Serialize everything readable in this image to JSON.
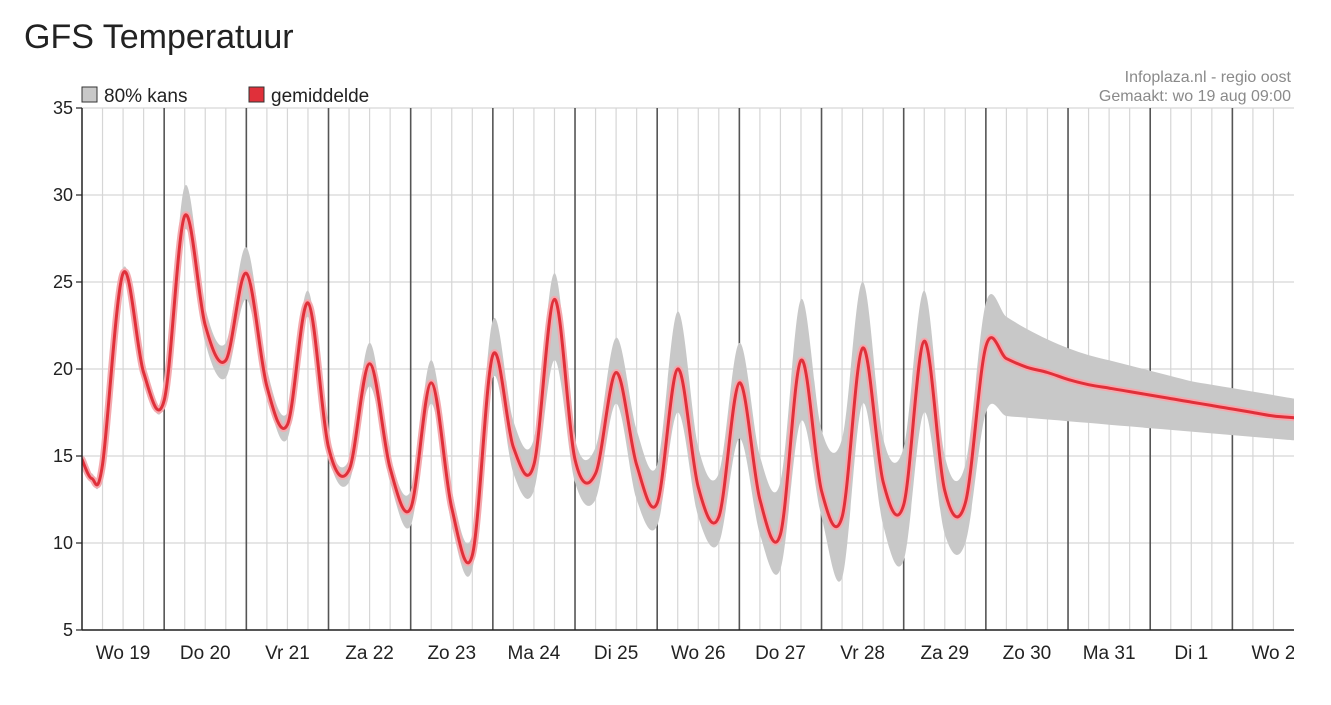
{
  "page": {
    "title": "GFS Temperatuur"
  },
  "chart_data": {
    "type": "line",
    "title": "GFS Temperatuur",
    "xlabel": "",
    "ylabel": "",
    "ylim": [
      5,
      35
    ],
    "y_ticks": [
      5,
      10,
      15,
      20,
      25,
      30,
      35
    ],
    "x_unit": "day",
    "xlim": [
      0,
      14.75
    ],
    "categories": [
      "Wo 19",
      "Do 20",
      "Vr 21",
      "Za 22",
      "Zo 23",
      "Ma 24",
      "Di 25",
      "Wo 26",
      "Do 27",
      "Vr 28",
      "Za 29",
      "Zo 30",
      "Ma 31",
      "Di 1",
      "Wo 2"
    ],
    "grid": true,
    "legend": {
      "position": "top-left",
      "entries": [
        "80% kans",
        "gemiddelde"
      ]
    },
    "source": [
      "Infoplaza.nl - regio oost",
      "Gemaakt: wo 19 aug 09:00"
    ],
    "colors": {
      "mean": "#e0303a",
      "band": "#c8c8c8",
      "mean_halo": "#f4a9ae"
    },
    "series": [
      {
        "name": "gemiddelde",
        "x": [
          0.0,
          0.12,
          0.25,
          0.5,
          0.75,
          1.0,
          1.25,
          1.5,
          1.75,
          2.0,
          2.25,
          2.5,
          2.75,
          3.0,
          3.25,
          3.5,
          3.75,
          4.0,
          4.25,
          4.5,
          4.75,
          5.0,
          5.25,
          5.5,
          5.75,
          6.0,
          6.25,
          6.5,
          6.75,
          7.0,
          7.25,
          7.5,
          7.75,
          8.0,
          8.25,
          8.5,
          8.75,
          9.0,
          9.25,
          9.5,
          9.75,
          10.0,
          10.25,
          10.5,
          10.75,
          11.0,
          11.25,
          11.5,
          11.75,
          12.0,
          12.25,
          12.5,
          12.75,
          13.0,
          13.25,
          13.5,
          13.75,
          14.0,
          14.25,
          14.5,
          14.75
        ],
        "values": [
          14.8,
          13.7,
          14.5,
          25.5,
          19.8,
          18.2,
          28.8,
          22.5,
          20.5,
          25.5,
          19.0,
          16.8,
          23.8,
          15.5,
          14.2,
          20.3,
          14.3,
          12.0,
          19.2,
          12.0,
          9.3,
          20.8,
          15.5,
          14.5,
          24.0,
          14.8,
          14.0,
          19.8,
          14.5,
          12.3,
          20.0,
          13.2,
          11.5,
          19.2,
          12.5,
          10.5,
          20.5,
          13.0,
          11.5,
          21.2,
          13.5,
          12.2,
          21.6,
          13.0,
          12.3,
          21.3,
          20.6,
          20.1,
          19.8,
          19.4,
          19.1,
          18.9,
          18.7,
          18.5,
          18.3,
          18.1,
          17.9,
          17.7,
          17.5,
          17.3,
          17.2
        ]
      },
      {
        "name": "80% kans",
        "type": "area-range",
        "x": [
          0.0,
          0.12,
          0.25,
          0.5,
          0.75,
          1.0,
          1.25,
          1.5,
          1.75,
          2.0,
          2.25,
          2.5,
          2.75,
          3.0,
          3.25,
          3.5,
          3.75,
          4.0,
          4.25,
          4.5,
          4.75,
          5.0,
          5.25,
          5.5,
          5.75,
          6.0,
          6.25,
          6.5,
          6.75,
          7.0,
          7.25,
          7.5,
          7.75,
          8.0,
          8.25,
          8.5,
          8.75,
          9.0,
          9.25,
          9.5,
          9.75,
          10.0,
          10.25,
          10.5,
          10.75,
          11.0,
          11.25,
          11.5,
          11.75,
          12.0,
          12.25,
          12.5,
          12.75,
          13.0,
          13.25,
          13.5,
          13.75,
          14.0,
          14.25,
          14.5,
          14.75
        ],
        "low": [
          14.5,
          13.5,
          14.2,
          25.2,
          19.5,
          17.9,
          28.0,
          21.5,
          19.5,
          24.0,
          18.5,
          16.0,
          23.0,
          15.0,
          13.5,
          19.0,
          13.5,
          11.0,
          18.0,
          11.0,
          8.5,
          19.5,
          14.0,
          13.0,
          20.5,
          13.5,
          12.5,
          18.0,
          12.5,
          11.0,
          17.5,
          11.5,
          10.0,
          16.0,
          10.5,
          8.5,
          17.0,
          11.5,
          8.0,
          18.0,
          11.0,
          9.0,
          17.5,
          10.5,
          10.0,
          17.5,
          17.3,
          17.2,
          17.1,
          17.0,
          16.9,
          16.8,
          16.7,
          16.6,
          16.5,
          16.4,
          16.3,
          16.2,
          16.1,
          16.0,
          15.9
        ],
        "high": [
          15.1,
          14.0,
          14.8,
          25.8,
          20.1,
          18.5,
          30.5,
          23.5,
          21.5,
          27.0,
          20.0,
          17.5,
          24.5,
          16.0,
          14.8,
          21.5,
          15.0,
          13.0,
          20.5,
          13.0,
          10.5,
          22.8,
          17.0,
          16.0,
          25.5,
          16.0,
          15.5,
          21.8,
          16.5,
          14.5,
          23.3,
          15.5,
          14.0,
          21.5,
          15.0,
          13.5,
          24.0,
          16.5,
          16.0,
          25.0,
          16.0,
          15.5,
          24.5,
          15.0,
          14.5,
          23.8,
          23.0,
          22.3,
          21.7,
          21.2,
          20.8,
          20.5,
          20.2,
          19.9,
          19.6,
          19.3,
          19.1,
          18.9,
          18.7,
          18.5,
          18.3
        ]
      }
    ]
  }
}
